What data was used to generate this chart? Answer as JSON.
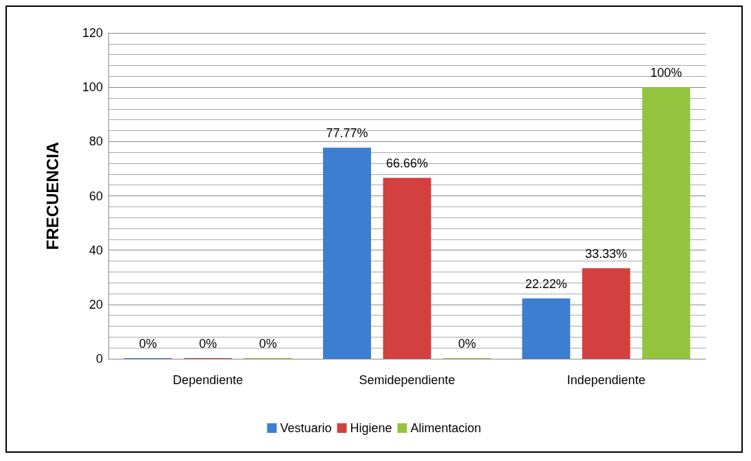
{
  "chart_data": {
    "type": "bar",
    "ylabel": "FRECUENCIA",
    "categories": [
      "Dependiente",
      "Semidependiente",
      "Independiente"
    ],
    "series": [
      {
        "name": "Vestuario",
        "color": "#3c7fd2",
        "values": [
          0,
          77.77,
          22.22
        ],
        "value_labels": [
          "0%",
          "77.77%",
          "22.22%"
        ]
      },
      {
        "name": "Higiene",
        "color": "#d24140",
        "values": [
          0,
          66.66,
          33.33
        ],
        "value_labels": [
          "0%",
          "66.66%",
          "33.33%"
        ]
      },
      {
        "name": "Alimentacion",
        "color": "#94c43e",
        "values": [
          0,
          0,
          100
        ],
        "value_labels": [
          "0%",
          "0%",
          "100%"
        ]
      }
    ],
    "ylim": [
      0,
      120
    ],
    "yticks": [
      0,
      20,
      40,
      60,
      80,
      100,
      120
    ],
    "grid": true,
    "legend": "bottom"
  }
}
